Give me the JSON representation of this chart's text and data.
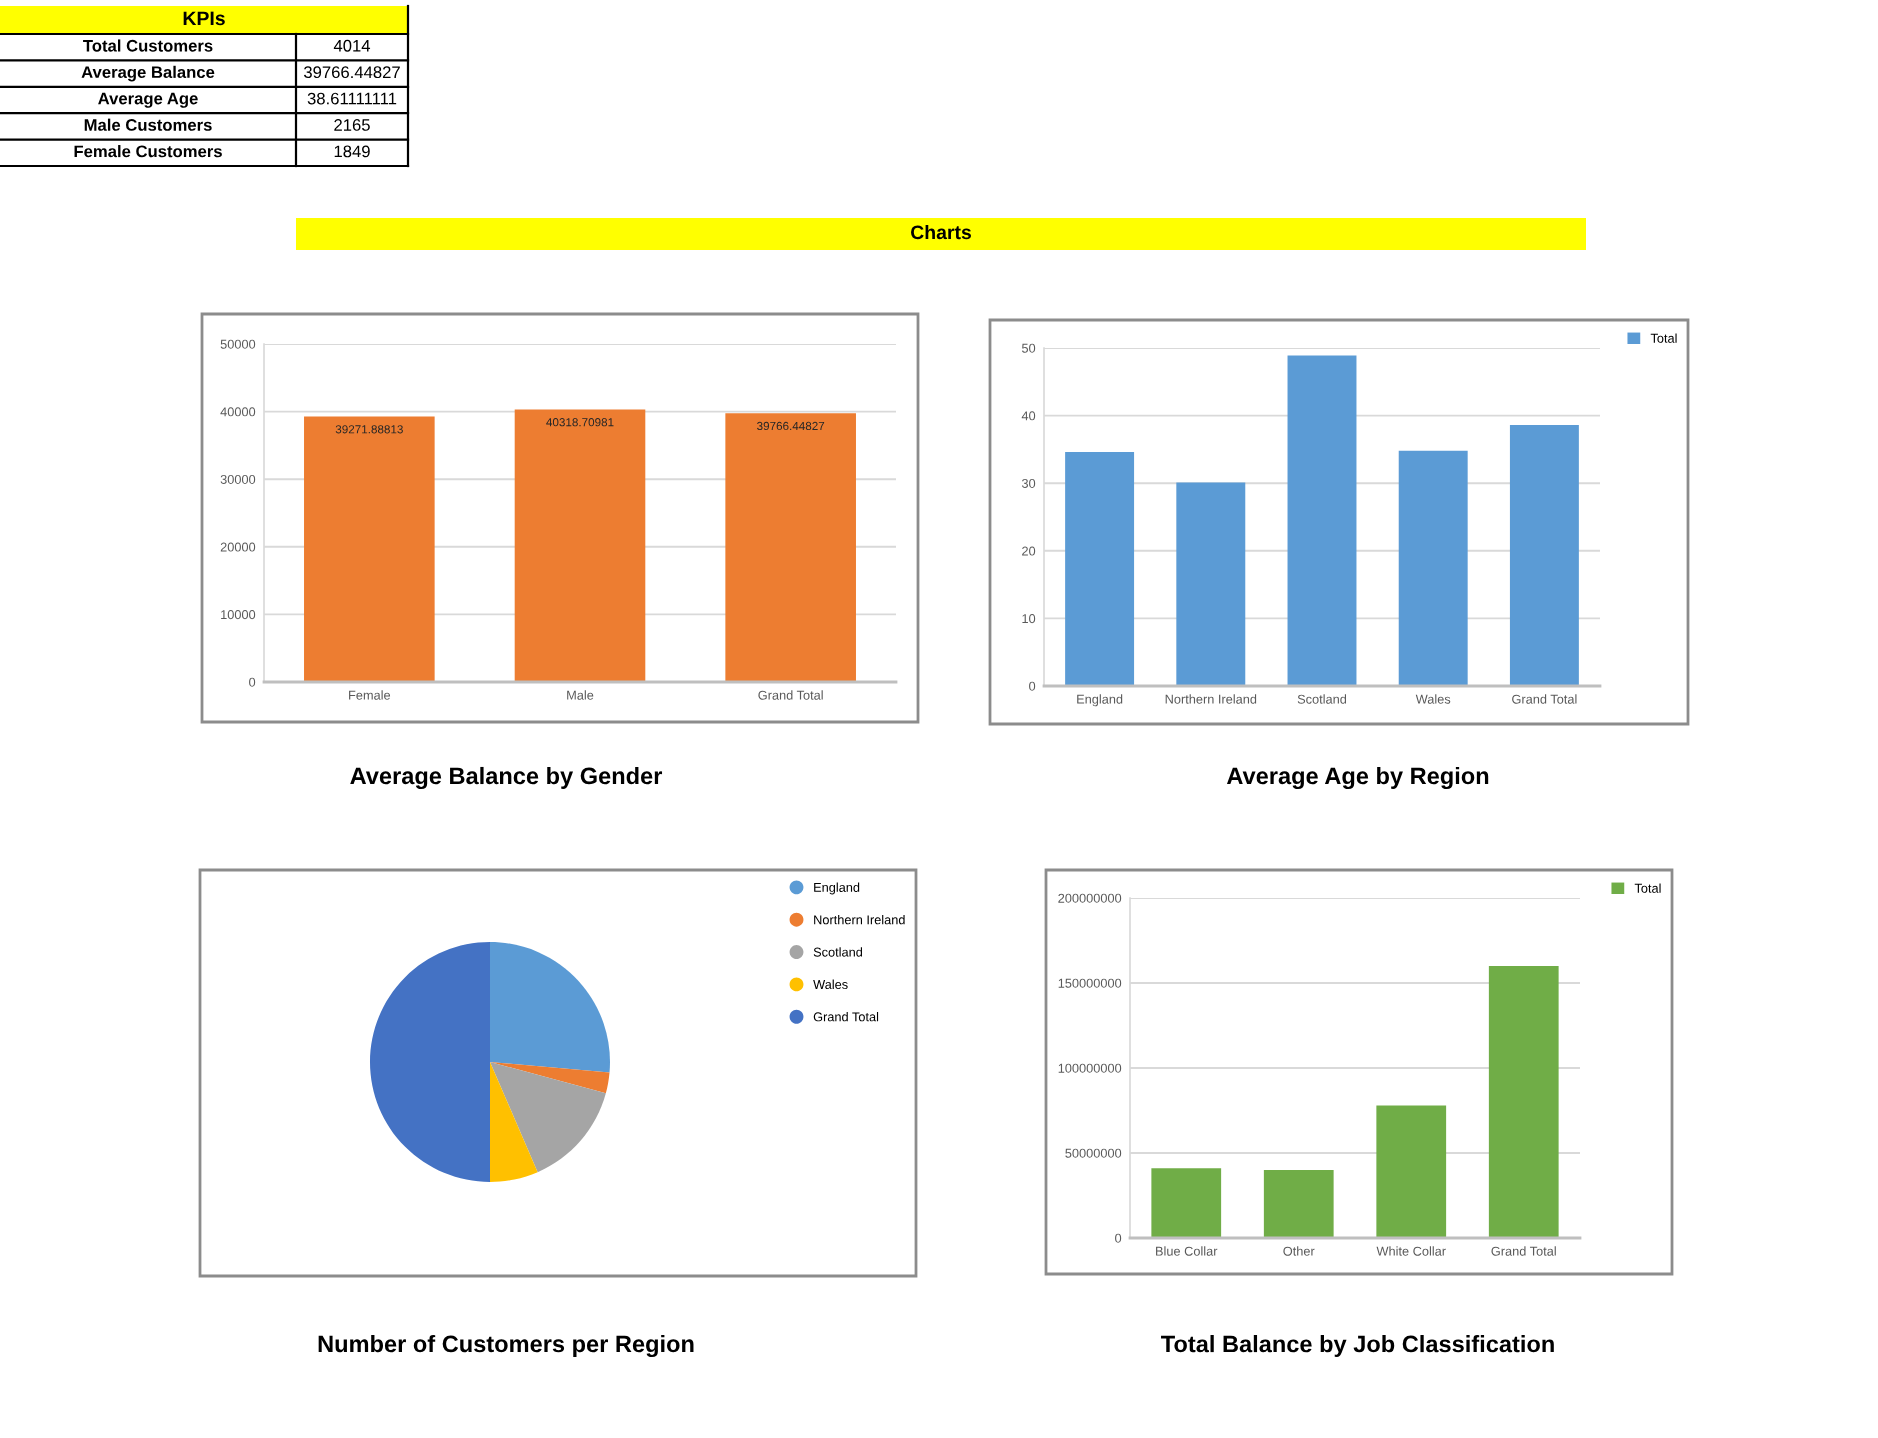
{
  "chart_data": [
    {
      "type": "other",
      "title": "KPIs",
      "categories": [
        "Total Customers",
        "Average Balance",
        "Average Age",
        "Male Customers",
        "Female Customers"
      ],
      "values": [
        4014,
        39766.44827,
        38.61111111,
        2165,
        1849
      ],
      "data_labels": true
    },
    {
      "type": "other",
      "title": "Charts"
    },
    {
      "type": "bar",
      "title": "Average Balance by Gender",
      "categories": [
        "Female",
        "Male",
        "Grand Total"
      ],
      "values": [
        39271.88813,
        40318.70981,
        39766.44827
      ],
      "color": "#ed7d31",
      "ylim": [
        0,
        50000
      ],
      "yticks": [
        0,
        10000,
        20000,
        30000,
        40000,
        50000
      ],
      "grid": "y",
      "data_labels": true
    },
    {
      "type": "bar",
      "title": "Average Age by Region",
      "categories": [
        "England",
        "Northern Ireland",
        "Scotland",
        "Wales",
        "Grand Total"
      ],
      "series": [
        {
          "name": "Total",
          "color": "#5b9bd5",
          "values": [
            34.6,
            30.1,
            48.9,
            34.8,
            38.6
          ]
        }
      ],
      "ylim": [
        0,
        50
      ],
      "yticks": [
        0,
        10,
        20,
        30,
        40,
        50
      ],
      "grid": "y",
      "legend": "top right"
    },
    {
      "type": "pie",
      "title": "Number of Customers per Region",
      "categories": [
        "England",
        "Northern Ireland",
        "Scotland",
        "Wales",
        "Grand Total"
      ],
      "values": [
        26.4,
        2.8,
        14.3,
        6.5,
        50.0
      ],
      "colors": [
        "#5b9bd5",
        "#ed7d31",
        "#a5a5a5",
        "#ffc000",
        "#4472c4"
      ],
      "legend": "top right"
    },
    {
      "type": "bar",
      "title": "Total Balance by Job Classification",
      "categories": [
        "Blue Collar",
        "Other",
        "White Collar",
        "Grand Total"
      ],
      "series": [
        {
          "name": "Total",
          "color": "#70ad47",
          "values": [
            41000000,
            40000000,
            78000000,
            160000000
          ]
        }
      ],
      "ylim": [
        0,
        200000000
      ],
      "yticks": [
        0,
        50000000,
        100000000,
        150000000,
        200000000
      ],
      "grid": "y",
      "legend": "top right"
    }
  ]
}
